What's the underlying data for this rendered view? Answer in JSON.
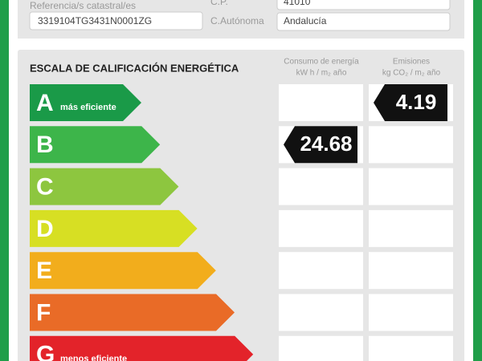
{
  "property": {
    "cadastral_label": "Referencia/s catastral/es",
    "cadastral_value": "3319104TG3431N0001ZG",
    "cp_label": "C.P.",
    "cp_value": "41010",
    "region_label": "C.Autónoma",
    "region_value": "Andalucía"
  },
  "scale": {
    "title": "ESCALA DE CALIFICACIÓN ENERGÉTICA",
    "consumption_header": [
      "Consumo de energía",
      "kW h / m₂ año"
    ],
    "emissions_header": [
      "Emisiones",
      "kg CO₂ / m₂ año"
    ],
    "classes": [
      {
        "letter": "A",
        "note": "más eficiente",
        "color": "#1a9a48",
        "emissions": 4.19
      },
      {
        "letter": "B",
        "color": "#3db54a",
        "consumption": 24.68
      },
      {
        "letter": "C",
        "color": "#8dc63f"
      },
      {
        "letter": "D",
        "color": "#d7df23"
      },
      {
        "letter": "E",
        "color": "#f2ad1c"
      },
      {
        "letter": "F",
        "color": "#e96b27"
      },
      {
        "letter": "G",
        "note": "menos eficiente",
        "color": "#e3232a"
      }
    ]
  }
}
